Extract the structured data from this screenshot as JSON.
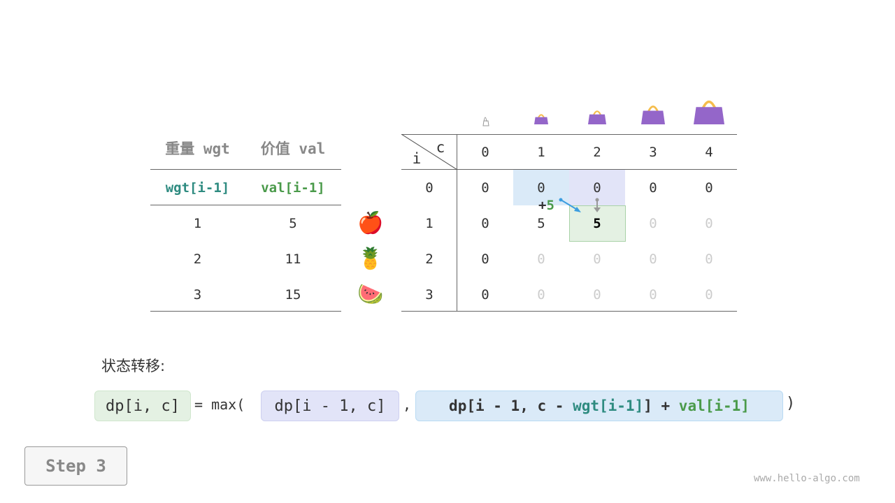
{
  "items_table": {
    "headers": [
      "重量 wgt",
      "价值 val"
    ],
    "subheaders": [
      "wgt[i-1]",
      "val[i-1]"
    ],
    "rows": [
      [
        "1",
        "5"
      ],
      [
        "2",
        "11"
      ],
      [
        "3",
        "15"
      ]
    ],
    "fruit_icons": [
      "apple-icon",
      "pineapple-icon",
      "watermelon-icon"
    ]
  },
  "dp_table": {
    "corner_c": "c",
    "corner_i": "i",
    "col_headers": [
      "0",
      "1",
      "2",
      "3",
      "4"
    ],
    "row_headers": [
      "0",
      "1",
      "2",
      "3"
    ],
    "cells": [
      [
        "0",
        "0",
        "0",
        "0",
        "0"
      ],
      [
        "0",
        "5",
        "5",
        "0",
        "0"
      ],
      [
        "0",
        "0",
        "0",
        "0",
        "0"
      ],
      [
        "0",
        "0",
        "0",
        "0",
        "0"
      ]
    ],
    "filled": [
      [
        true,
        true,
        true,
        true,
        true
      ],
      [
        true,
        true,
        true,
        false,
        false
      ],
      [
        true,
        false,
        false,
        false,
        false
      ],
      [
        true,
        false,
        false,
        false,
        false
      ]
    ],
    "bag_icons": [
      "empty-bag-icon",
      "bag-icon",
      "bag-icon",
      "bag-icon",
      "bag-icon"
    ],
    "plus_label": "+",
    "plus_value": "5"
  },
  "colors": {
    "blue": "#daeaf8",
    "purple": "#e2e4f8",
    "green": "#e4f1e3",
    "teal": "#2e8b80",
    "green_text": "#4a9a4a",
    "bag": "#9466c9"
  },
  "formula": {
    "label": "状态转移:",
    "lhs": "dp[i, c]",
    "eq": "= max(",
    "term1": "dp[i - 1, c]",
    "comma": ",",
    "t2a": "dp[i - 1, c - ",
    "t2b": "wgt[i-1]",
    "t2c": "] + ",
    "t2d": "val[i-1]",
    "close": ")"
  },
  "step_label": "Step 3",
  "watermark": "www.hello-algo.com"
}
